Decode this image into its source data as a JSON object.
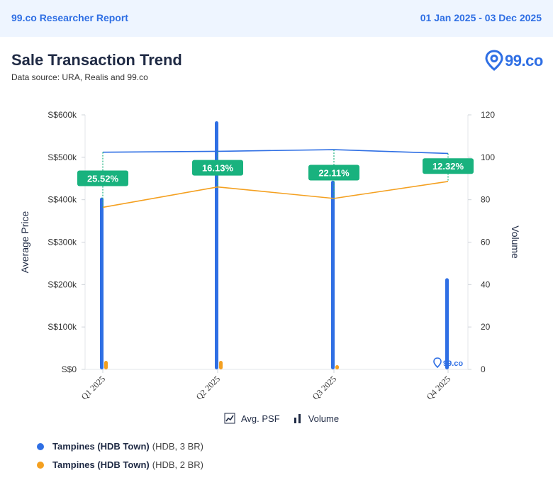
{
  "header": {
    "brand": "99.co Researcher Report",
    "date_range": "01 Jan 2025 - 03 Dec 2025"
  },
  "title": "Sale Transaction Trend",
  "source": "Data source: URA, Realis and 99.co",
  "logo_text": "99.co",
  "watermark_text": "99.co",
  "legend": {
    "avg_psf": "Avg. PSF",
    "volume": "Volume"
  },
  "series_legend": [
    {
      "name": "Tampines (HDB Town)",
      "meta": "(HDB, 3 BR)",
      "color": "#2f6fe4"
    },
    {
      "name": "Tampines (HDB Town)",
      "meta": "(HDB, 2 BR)",
      "color": "#f4a020"
    }
  ],
  "chart_data": {
    "type": "bar",
    "categories": [
      "Q1 2025",
      "Q2 2025",
      "Q3 2025",
      "Q4 2025"
    ],
    "ylabel": "Average Price",
    "y2label": "Volume",
    "ylim": [
      0,
      600000
    ],
    "y2lim": [
      0,
      120
    ],
    "y_ticks": [
      "S$0",
      "S$100k",
      "S$200k",
      "S$300k",
      "S$400k",
      "S$500k",
      "S$600k"
    ],
    "y2_ticks": [
      "0",
      "20",
      "40",
      "60",
      "80",
      "100",
      "120"
    ],
    "volume_series": [
      {
        "color": "#2f6fe4",
        "values": [
          81,
          117,
          89,
          43
        ]
      },
      {
        "color": "#f4a020",
        "values": [
          4,
          4,
          2,
          0
        ]
      }
    ],
    "price_series": [
      {
        "color": "#2f6fe4",
        "values": [
          512000,
          514000,
          518000,
          509000
        ]
      },
      {
        "color": "#f4a020",
        "values": [
          382000,
          430000,
          403000,
          443000
        ]
      }
    ],
    "gap_labels": [
      "25.52%",
      "16.13%",
      "22.11%",
      "12.32%"
    ],
    "gap_color": "#19b27e",
    "grid": false
  }
}
